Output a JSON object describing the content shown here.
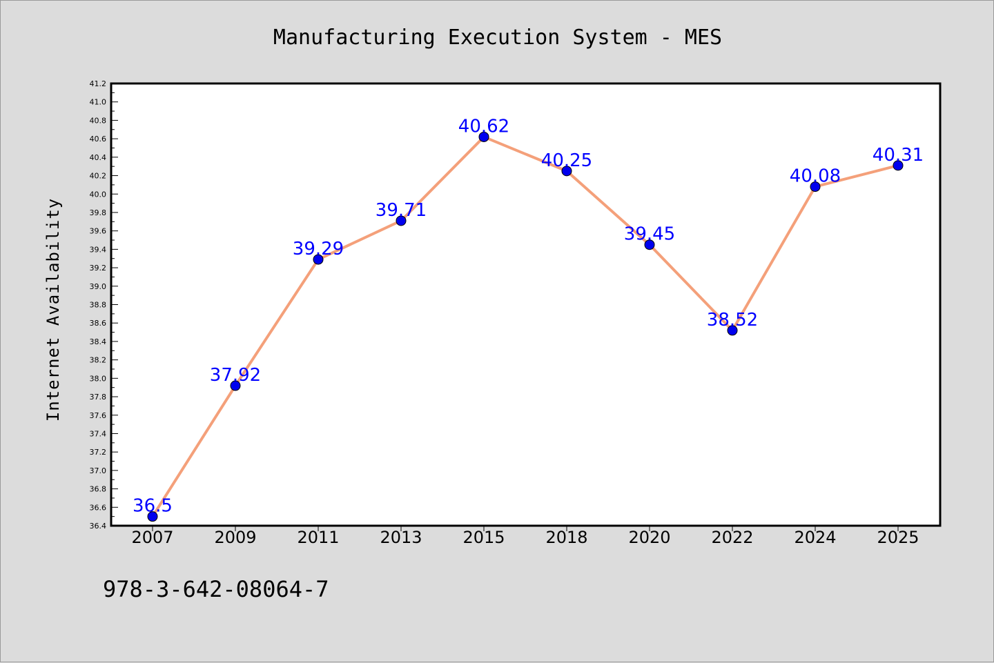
{
  "chart_data": {
    "type": "line",
    "title": "Manufacturing Execution System - MES",
    "xlabel": "",
    "ylabel": "Internet Availability",
    "categories": [
      "2007",
      "2009",
      "2011",
      "2013",
      "2015",
      "2018",
      "2020",
      "2022",
      "2024",
      "2025"
    ],
    "values": [
      36.5,
      37.92,
      39.29,
      39.71,
      40.62,
      40.25,
      39.45,
      38.52,
      40.08,
      40.31
    ],
    "data_labels": [
      "36.5",
      "37.92",
      "39.29",
      "39.71",
      "40.62",
      "40.25",
      "39.45",
      "38.52",
      "40.08",
      "40.31"
    ],
    "ylim": [
      36.4,
      41.2
    ],
    "yticks": [
      "36.4",
      "36.6",
      "36.8",
      "37.0",
      "37.2",
      "37.4",
      "37.6",
      "37.8",
      "38.0",
      "38.2",
      "38.4",
      "38.6",
      "38.8",
      "39.0",
      "39.2",
      "39.4",
      "39.6",
      "39.8",
      "40.0",
      "40.2",
      "40.4",
      "40.6",
      "40.8",
      "41.0",
      "41.2"
    ],
    "line_color": "#f4a07a",
    "marker_color": "#0000ee",
    "label_color": "#0000ff",
    "grid": false,
    "legend": "none"
  },
  "footnote": "978-3-642-08064-7"
}
